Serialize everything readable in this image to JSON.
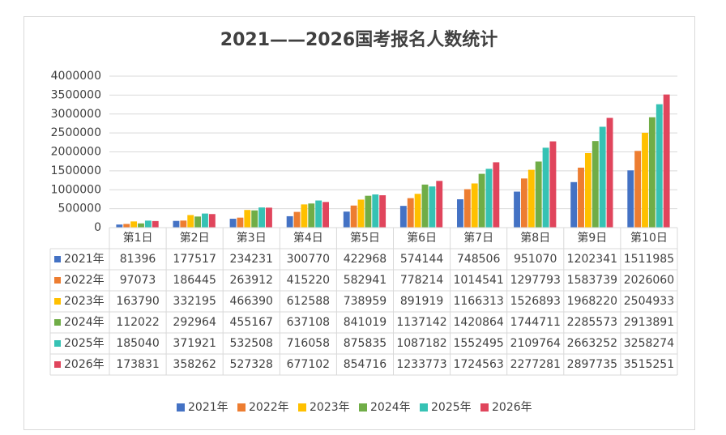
{
  "chart_data": {
    "type": "bar",
    "title": "2021——2026国考报名人数统计",
    "categories": [
      "第1日",
      "第2日",
      "第3日",
      "第4日",
      "第5日",
      "第6日",
      "第7日",
      "第8日",
      "第9日",
      "第10日"
    ],
    "series": [
      {
        "name": "2021年",
        "color": "#4472c4",
        "values": [
          81396,
          177517,
          234231,
          300770,
          422968,
          574144,
          748506,
          951070,
          1202341,
          1511985
        ]
      },
      {
        "name": "2022年",
        "color": "#ed7d31",
        "values": [
          97073,
          186445,
          263912,
          415220,
          582941,
          778214,
          1014541,
          1297793,
          1583739,
          2026060
        ]
      },
      {
        "name": "2023年",
        "color": "#ffc000",
        "values": [
          163790,
          332195,
          466390,
          612588,
          738959,
          891919,
          1166313,
          1526893,
          1968220,
          2504933
        ]
      },
      {
        "name": "2024年",
        "color": "#70ad47",
        "values": [
          112022,
          292964,
          455167,
          637108,
          841019,
          1137142,
          1420864,
          1744711,
          2285573,
          2913891
        ]
      },
      {
        "name": "2025年",
        "color": "#36c2b4",
        "values": [
          185040,
          371921,
          532508,
          716058,
          875835,
          1087182,
          1552495,
          2109764,
          2663252,
          3258274
        ]
      },
      {
        "name": "2026年",
        "color": "#e0455c",
        "values": [
          173831,
          358262,
          527328,
          677102,
          854716,
          1233773,
          1724563,
          2277281,
          2897735,
          3515251
        ]
      }
    ],
    "ylim": [
      0,
      4000000
    ],
    "yticks": [
      0,
      500000,
      1000000,
      1500000,
      2000000,
      2500000,
      3000000,
      3500000,
      4000000
    ],
    "grid": true,
    "data_table": true,
    "legend": "bottom"
  }
}
